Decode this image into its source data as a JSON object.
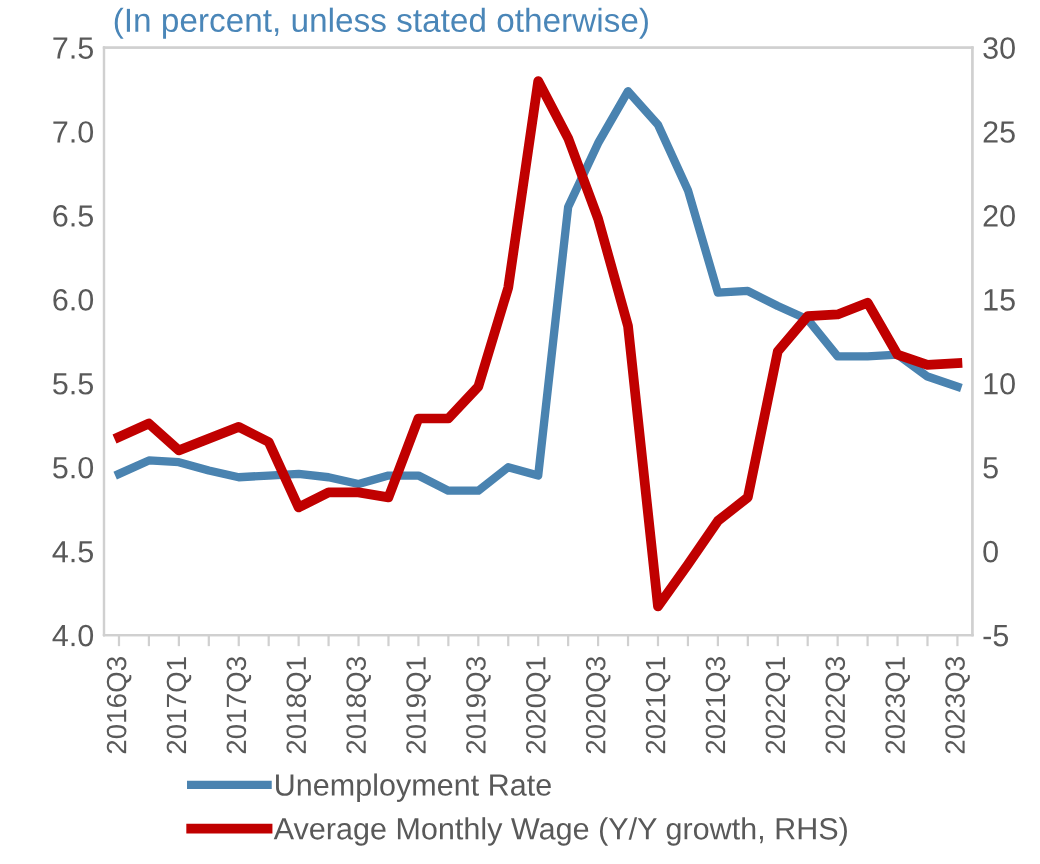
{
  "chart_data": {
    "type": "line",
    "subtitle": "(In percent, unless stated otherwise)",
    "categories": [
      "2016Q3",
      null,
      "2017Q1",
      null,
      "2017Q3",
      null,
      "2018Q1",
      null,
      "2018Q3",
      null,
      "2019Q1",
      null,
      "2019Q3",
      null,
      "2020Q1",
      null,
      "2020Q3",
      null,
      "2021Q1",
      null,
      "2021Q3",
      null,
      "2022Q1",
      null,
      "2022Q3",
      null,
      "2023Q1",
      null,
      "2023Q3"
    ],
    "series": [
      {
        "name": "Unemployment Rate",
        "color": "#4a83b0",
        "values": [
          4.96,
          5.04,
          5.03,
          4.98,
          4.94,
          4.95,
          4.96,
          4.94,
          4.9,
          4.95,
          4.95,
          4.86,
          4.86,
          5.0,
          4.95,
          6.55,
          6.93,
          7.24,
          7.04,
          6.65,
          6.04,
          6.05,
          5.96,
          5.88,
          5.66,
          5.66,
          5.67,
          5.54,
          5.48
        ]
      },
      {
        "name": "Average Monthly Wage (Y/Y growth, RHS)",
        "color": "#c00000",
        "axis": "y2",
        "values": [
          6.8,
          7.6,
          6.0,
          6.7,
          7.4,
          6.5,
          2.6,
          3.5,
          3.5,
          3.2,
          7.9,
          7.9,
          9.8,
          15.7,
          28.0,
          24.6,
          19.8,
          13.4,
          -3.3,
          -0.8,
          1.8,
          3.2,
          11.9,
          14.0,
          14.1,
          14.8,
          11.7,
          11.1,
          11.2
        ]
      }
    ],
    "ylim": [
      4.0,
      7.5
    ],
    "yticks": [
      {
        "value": 4.0,
        "label": "4.0"
      },
      {
        "value": 4.5,
        "label": "4.5"
      },
      {
        "value": 5.0,
        "label": "5.0"
      },
      {
        "value": 5.5,
        "label": "5.5"
      },
      {
        "value": 6.0,
        "label": "6.0"
      },
      {
        "value": 6.5,
        "label": "6.5"
      },
      {
        "value": 7.0,
        "label": "7.0"
      },
      {
        "value": 7.5,
        "label": "7.5"
      }
    ],
    "y2lim": [
      -5,
      30
    ],
    "y2ticks": [
      -5,
      0,
      5,
      10,
      15,
      20,
      25,
      30
    ],
    "grid": false,
    "legend": "bottom",
    "marker": "none",
    "line_style": "solid"
  }
}
